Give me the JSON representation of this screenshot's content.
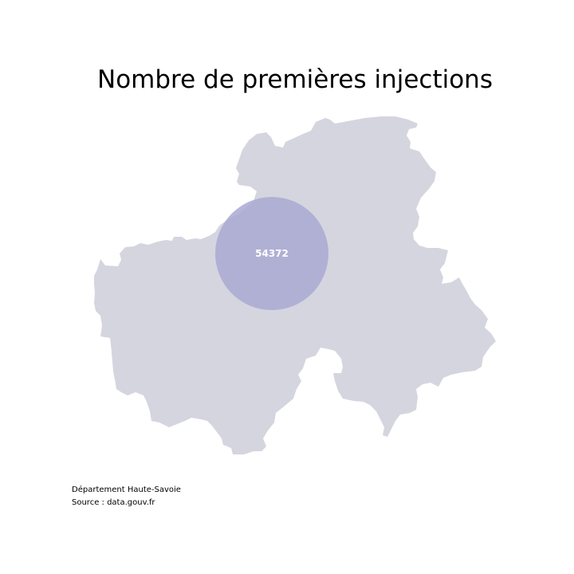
{
  "title": "Nombre de premières injections",
  "map": {
    "region_color": "#d5d5df",
    "bubble_color": "#a9a9d4",
    "bubble_label_color": "#ffffff",
    "bubble_value": "54372"
  },
  "footer": {
    "line1": "Département Haute-Savoie",
    "line2": "Source : data.gouv.fr"
  }
}
